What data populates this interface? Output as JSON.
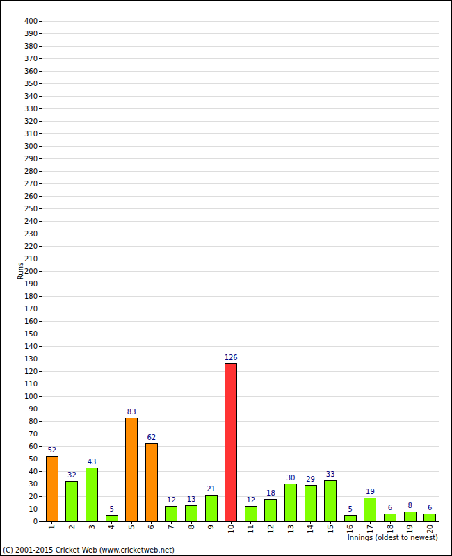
{
  "chart_data": {
    "type": "bar",
    "x_label": "Innings (oldest to newest)",
    "y_label": "Runs",
    "annotations": [
      "(C) 2001-2015 Cricket Web (www.cricketweb.net)"
    ],
    "categories": [
      "1",
      "2",
      "3",
      "4",
      "5",
      "6",
      "7",
      "8",
      "9",
      "10",
      "11",
      "12",
      "13",
      "14",
      "15",
      "16",
      "17",
      "18",
      "19",
      "20"
    ],
    "values": [
      52,
      32,
      43,
      5,
      83,
      62,
      12,
      13,
      21,
      126,
      12,
      18,
      30,
      29,
      33,
      5,
      19,
      6,
      8,
      6
    ],
    "colors": [
      "#ff8c00",
      "#80ff00",
      "#80ff00",
      "#80ff00",
      "#ff8c00",
      "#ff8c00",
      "#80ff00",
      "#80ff00",
      "#80ff00",
      "#ff3333",
      "#80ff00",
      "#80ff00",
      "#80ff00",
      "#80ff00",
      "#80ff00",
      "#80ff00",
      "#80ff00",
      "#80ff00",
      "#80ff00",
      "#80ff00"
    ],
    "ylim": [
      0,
      400
    ],
    "yticks": [
      0,
      10,
      20,
      30,
      40,
      50,
      60,
      70,
      80,
      90,
      100,
      110,
      120,
      130,
      140,
      150,
      160,
      170,
      180,
      190,
      200,
      210,
      220,
      230,
      240,
      250,
      260,
      270,
      280,
      290,
      300,
      310,
      320,
      330,
      340,
      350,
      360,
      370,
      380,
      390,
      400
    ],
    "grid": true,
    "data_labels": true
  }
}
